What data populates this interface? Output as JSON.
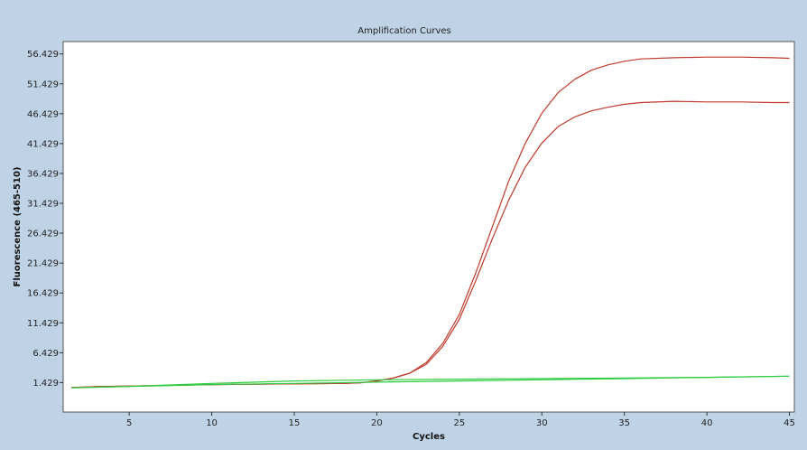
{
  "chart_data": {
    "type": "line",
    "title": "Amplification Curves",
    "xlabel": "Cycles",
    "ylabel": "Fluorescence (465-510)",
    "xlim": [
      1,
      45.3
    ],
    "ylim": [
      -3.5,
      58.5
    ],
    "x_ticks": [
      5,
      10,
      15,
      20,
      25,
      30,
      35,
      40,
      45
    ],
    "y_ticks": [
      1.429,
      6.429,
      11.429,
      16.429,
      21.429,
      26.429,
      31.429,
      36.429,
      41.429,
      46.429,
      51.429,
      56.429
    ],
    "y_tick_labels": [
      "1.429",
      "6.429",
      "11.429",
      "16.429",
      "21.429",
      "26.429",
      "31.429",
      "36.429",
      "41.429",
      "46.429",
      "51.429",
      "56.429"
    ],
    "grid": false,
    "legend": "none",
    "series": [
      {
        "color": "#c0392b",
        "x": [
          1.5,
          3,
          5,
          7,
          9,
          10,
          12,
          14,
          16,
          18,
          19,
          20,
          21,
          22,
          23,
          24,
          25,
          26,
          27,
          28,
          29,
          30,
          31,
          32,
          33,
          34,
          35,
          36,
          38,
          40,
          42,
          44,
          45
        ],
        "y": [
          0.6,
          0.75,
          0.85,
          0.95,
          1.05,
          1.1,
          1.15,
          1.2,
          1.25,
          1.3,
          1.4,
          1.7,
          2.2,
          3.0,
          4.8,
          8.0,
          12.8,
          19.8,
          27.5,
          35.2,
          41.5,
          46.5,
          50.0,
          52.2,
          53.7,
          54.6,
          55.2,
          55.6,
          55.8,
          55.9,
          55.9,
          55.8,
          55.7
        ]
      },
      {
        "color": "#c0392b",
        "x": [
          1.5,
          3,
          5,
          7,
          9,
          10,
          12,
          14,
          16,
          18,
          19,
          20,
          21,
          22,
          23,
          24,
          25,
          26,
          27,
          28,
          29,
          30,
          31,
          32,
          33,
          34,
          35,
          36,
          38,
          40,
          42,
          44,
          45
        ],
        "y": [
          0.6,
          0.75,
          0.85,
          0.95,
          1.05,
          1.1,
          1.15,
          1.2,
          1.25,
          1.3,
          1.4,
          1.7,
          2.2,
          3.0,
          4.5,
          7.5,
          12.0,
          18.5,
          25.5,
          32.0,
          37.5,
          41.5,
          44.3,
          45.9,
          46.9,
          47.5,
          48.0,
          48.3,
          48.5,
          48.4,
          48.4,
          48.3,
          48.3
        ]
      },
      {
        "color": "#2ecc40",
        "x": [
          1.5,
          5,
          10,
          15,
          20,
          25,
          30,
          35,
          40,
          45
        ],
        "y": [
          0.55,
          0.8,
          1.3,
          1.7,
          1.9,
          2.0,
          2.1,
          2.2,
          2.3,
          2.5
        ]
      },
      {
        "color": "#2ecc40",
        "x": [
          1.5,
          5,
          10,
          15,
          20,
          25,
          30,
          35,
          40,
          45
        ],
        "y": [
          0.55,
          0.8,
          1.1,
          1.3,
          1.5,
          1.7,
          1.9,
          2.1,
          2.3,
          2.5
        ]
      }
    ]
  }
}
